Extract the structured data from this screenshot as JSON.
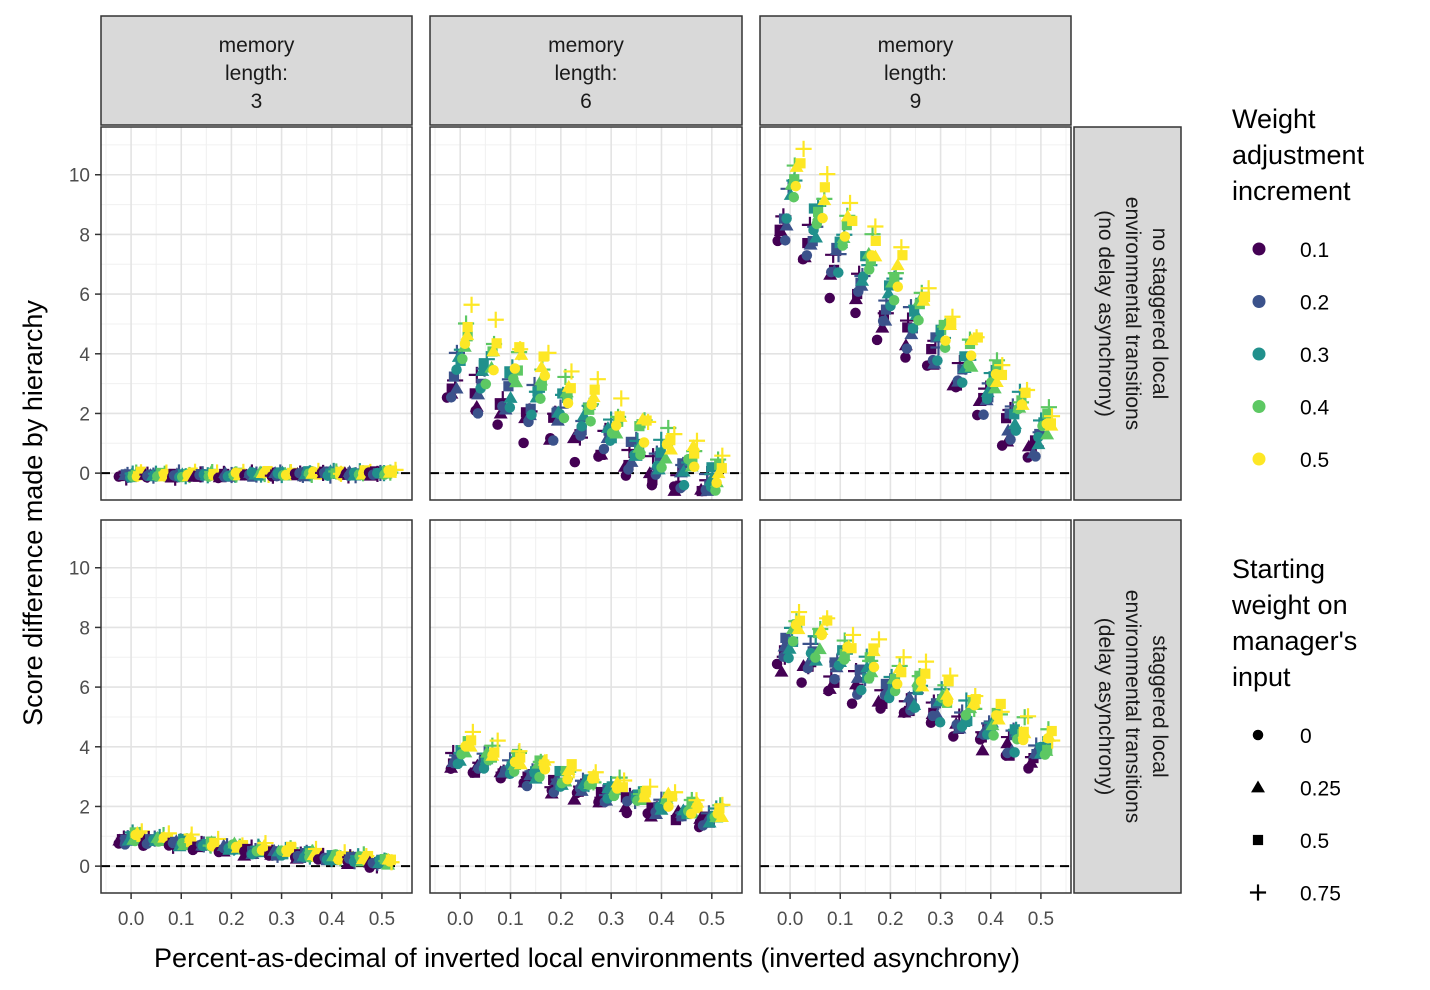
{
  "chart_data": {
    "type": "scatter",
    "xlabel": "Percent-as-decimal of inverted local environments (inverted asynchrony)",
    "ylabel": "Score difference made by hierarchy",
    "x_ticks": [
      "0.0",
      "0.1",
      "0.2",
      "0.3",
      "0.4",
      "0.5"
    ],
    "y_ticks": [
      "0",
      "2",
      "4",
      "6",
      "8",
      "10"
    ],
    "xlim": [
      -0.06,
      0.56
    ],
    "ylim": [
      -0.9,
      11.6
    ],
    "grid": true,
    "reference_line": {
      "y": 0,
      "style": "dashed"
    },
    "facet_columns": [
      {
        "label": [
          "memory",
          "length:",
          "3"
        ]
      },
      {
        "label": [
          "memory",
          "length:",
          "6"
        ]
      },
      {
        "label": [
          "memory",
          "length:",
          "9"
        ]
      }
    ],
    "facet_rows": [
      {
        "label": [
          "no staggered local",
          "environmental transitions",
          "(no delay asynchrony)"
        ]
      },
      {
        "label": [
          "staggered local",
          "environmental transitions",
          "(delay asynchrony)"
        ]
      }
    ],
    "color_legend": {
      "title": [
        "Weight",
        "adjustment",
        "increment"
      ],
      "entries": [
        {
          "label": "0.1",
          "color": "#440154"
        },
        {
          "label": "0.2",
          "color": "#3B528B"
        },
        {
          "label": "0.3",
          "color": "#21908C"
        },
        {
          "label": "0.4",
          "color": "#5DC863"
        },
        {
          "label": "0.5",
          "color": "#FDE725"
        }
      ]
    },
    "shape_legend": {
      "title": [
        "Starting",
        "weight on",
        "manager's",
        "input"
      ],
      "entries": [
        {
          "label": "0",
          "shape": "circle"
        },
        {
          "label": "0.25",
          "shape": "triangle"
        },
        {
          "label": "0.5",
          "shape": "square"
        },
        {
          "label": "0.75",
          "shape": "plus"
        }
      ]
    },
    "panels": [
      {
        "row": 0,
        "col": 0,
        "trend": {
          "start": 0.0,
          "end": 0.05,
          "spread": 0.15,
          "noise": 0.08
        }
      },
      {
        "row": 0,
        "col": 1,
        "trend": {
          "start": 5.6,
          "end": 0.8,
          "spread": 3.6,
          "noise": 0.35
        }
      },
      {
        "row": 0,
        "col": 2,
        "trend": {
          "start": 11.0,
          "end": 2.3,
          "spread": 3.6,
          "noise": 0.35
        }
      },
      {
        "row": 1,
        "col": 0,
        "trend": {
          "start": 1.15,
          "end": 0.25,
          "spread": 0.4,
          "noise": 0.12
        }
      },
      {
        "row": 1,
        "col": 1,
        "trend": {
          "start": 4.4,
          "end": 2.0,
          "spread": 1.2,
          "noise": 0.2
        }
      },
      {
        "row": 1,
        "col": 2,
        "trend": {
          "start": 8.8,
          "end": 4.6,
          "spread": 2.4,
          "noise": 0.3
        }
      }
    ]
  }
}
